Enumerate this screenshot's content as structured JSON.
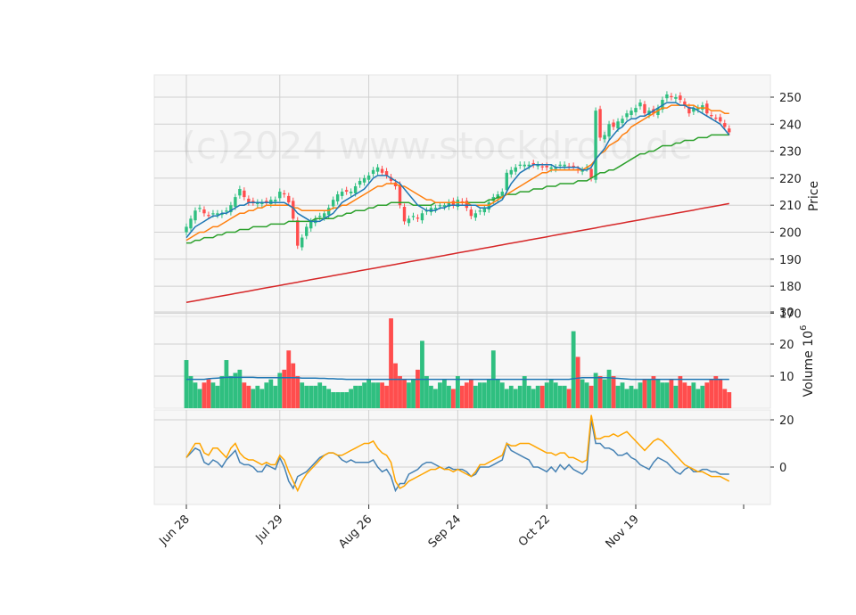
{
  "watermark": "(c)2024 www.stockdroid.de",
  "colors": {
    "panel_bg": "#f7f7f7",
    "grid": "#d0d0d0",
    "up": "#2fbf80",
    "down": "#ff4d4d",
    "ma_short": "#1f77b4",
    "ma_mid": "#ff7f0e",
    "ma_long": "#2ca02c",
    "ma_200": "#d62728",
    "volume_avg": "#1f77b4",
    "osc_fast": "#4682b4",
    "osc_slow": "#ffa500"
  },
  "chart_data": {
    "type": "candlestick",
    "x_tick_labels": [
      "Jun 28",
      "Jul 29",
      "Aug 26",
      "Sep 24",
      "Oct 22",
      "Nov 19"
    ],
    "x_tick_indices": [
      0,
      21,
      41,
      61,
      81,
      101
    ],
    "price_panel": {
      "ylabel": "Price",
      "ylim": [
        168,
        253.5
      ],
      "yticks": [
        170,
        180,
        190,
        200,
        210,
        220,
        230,
        240,
        250
      ],
      "close": [
        202,
        205,
        208,
        209,
        207,
        206,
        207,
        207,
        207,
        208,
        210,
        213,
        216,
        213,
        211,
        211,
        211,
        211,
        211,
        212,
        212,
        215,
        214,
        211,
        205,
        195,
        198,
        202,
        204,
        205,
        206,
        207,
        209,
        212,
        214,
        215,
        215,
        215,
        217,
        219,
        220,
        221,
        223,
        224,
        222,
        221,
        219,
        217,
        210,
        204,
        205,
        206,
        205,
        207,
        208,
        209,
        209,
        210,
        210,
        211,
        210,
        212,
        211,
        209,
        206,
        207,
        208,
        209,
        211,
        213,
        214,
        215,
        222,
        223,
        224,
        225,
        225,
        225,
        225,
        225,
        224,
        224,
        224,
        224,
        225,
        225,
        224,
        224,
        223,
        223,
        224,
        220,
        245,
        235,
        236,
        240,
        239,
        241,
        242,
        244,
        245,
        246,
        248,
        244,
        245,
        244,
        246,
        249,
        251,
        250,
        250,
        249,
        247,
        244,
        246,
        246,
        247,
        244,
        243,
        242,
        241,
        239,
        237
      ],
      "ma_short": [
        198,
        200,
        202,
        203,
        204,
        205,
        206,
        206,
        207,
        207,
        208,
        209,
        210,
        210,
        211,
        211,
        211,
        211,
        211,
        211,
        211,
        211,
        211,
        210,
        209,
        207,
        206,
        205,
        204,
        204,
        204,
        205,
        206,
        207,
        209,
        211,
        212,
        213,
        214,
        215,
        216,
        218,
        220,
        221,
        221,
        221,
        220,
        219,
        218,
        216,
        214,
        212,
        210,
        209,
        208,
        208,
        208,
        209,
        209,
        210,
        210,
        210,
        210,
        210,
        210,
        210,
        209,
        209,
        209,
        210,
        211,
        212,
        215,
        218,
        220,
        222,
        223,
        224,
        225,
        225,
        225,
        225,
        225,
        224,
        224,
        224,
        224,
        224,
        224,
        223,
        223,
        224,
        227,
        229,
        231,
        234,
        236,
        238,
        239,
        241,
        242,
        242,
        243,
        243,
        244,
        245,
        246,
        247,
        248,
        248,
        248,
        247,
        247,
        246,
        246,
        245,
        244,
        243,
        242,
        241,
        240,
        238,
        236
      ],
      "ma_mid": [
        197,
        198,
        199,
        200,
        200,
        201,
        202,
        202,
        203,
        204,
        205,
        206,
        207,
        207,
        208,
        208,
        209,
        209,
        210,
        210,
        210,
        210,
        210,
        210,
        209,
        209,
        208,
        208,
        208,
        208,
        208,
        208,
        208,
        209,
        209,
        210,
        210,
        211,
        212,
        213,
        214,
        215,
        216,
        217,
        217,
        218,
        218,
        218,
        217,
        217,
        216,
        215,
        214,
        213,
        212,
        212,
        211,
        211,
        211,
        211,
        211,
        211,
        211,
        211,
        210,
        210,
        210,
        210,
        210,
        211,
        212,
        213,
        214,
        215,
        216,
        217,
        218,
        219,
        220,
        221,
        222,
        222,
        223,
        223,
        223,
        223,
        223,
        223,
        223,
        223,
        224,
        225,
        227,
        229,
        230,
        232,
        233,
        234,
        236,
        237,
        239,
        240,
        241,
        242,
        243,
        244,
        245,
        246,
        246,
        247,
        247,
        247,
        247,
        247,
        247,
        246,
        246,
        246,
        245,
        245,
        245,
        244,
        244
      ],
      "ma_long": [
        196,
        196,
        197,
        197,
        198,
        198,
        198,
        199,
        199,
        200,
        200,
        200,
        201,
        201,
        201,
        202,
        202,
        202,
        202,
        203,
        203,
        203,
        203,
        204,
        204,
        204,
        204,
        204,
        204,
        205,
        205,
        205,
        205,
        205,
        206,
        206,
        207,
        207,
        208,
        208,
        208,
        209,
        209,
        210,
        210,
        210,
        211,
        211,
        211,
        211,
        211,
        210,
        210,
        210,
        210,
        210,
        211,
        211,
        211,
        211,
        211,
        211,
        211,
        211,
        211,
        211,
        211,
        211,
        212,
        212,
        213,
        213,
        214,
        214,
        214,
        215,
        215,
        215,
        216,
        216,
        216,
        217,
        217,
        217,
        218,
        218,
        218,
        218,
        219,
        219,
        219,
        220,
        221,
        222,
        222,
        223,
        223,
        224,
        225,
        226,
        227,
        228,
        229,
        229,
        230,
        230,
        231,
        232,
        232,
        232,
        233,
        233,
        234,
        234,
        234,
        235,
        235,
        235,
        236,
        236,
        236,
        236,
        236
      ],
      "ma_200": [
        174,
        174.3,
        174.6,
        174.9,
        175.2,
        175.5,
        175.8,
        176.1,
        176.4,
        176.7,
        177,
        177.3,
        177.6,
        177.9,
        178.2,
        178.5,
        178.8,
        179.1,
        179.4,
        179.7,
        180,
        180.3,
        180.6,
        180.9,
        181.2,
        181.5,
        181.8,
        182.1,
        182.4,
        182.7,
        183,
        183.3,
        183.6,
        183.9,
        184.2,
        184.5,
        184.8,
        185.1,
        185.4,
        185.7,
        186,
        186.3,
        186.6,
        186.9,
        187.2,
        187.5,
        187.8,
        188.1,
        188.4,
        188.7,
        189,
        189.3,
        189.6,
        189.9,
        190.2,
        190.5,
        190.8,
        191.1,
        191.4,
        191.7,
        192,
        192.3,
        192.6,
        192.9,
        193.2,
        193.5,
        193.8,
        194.1,
        194.4,
        194.7,
        195,
        195.3,
        195.6,
        195.9,
        196.2,
        196.5,
        196.8,
        197.1,
        197.4,
        197.7,
        198,
        198.3,
        198.6,
        198.9,
        199.2,
        199.5,
        199.8,
        200.1,
        200.4,
        200.7,
        201,
        201.3,
        201.6,
        201.9,
        202.2,
        202.5,
        202.8,
        203.1,
        203.4,
        203.7,
        204,
        204.3,
        204.6,
        204.9,
        205.2,
        205.5,
        205.8,
        206.1,
        206.4,
        206.7,
        207,
        207.3,
        207.6,
        207.9,
        208.2,
        208.5,
        208.8,
        209.1,
        209.4,
        209.7,
        210,
        210.3,
        210.6
      ]
    },
    "volume_panel": {
      "ylabel": "Volume  10^6",
      "ylim": [
        0,
        30
      ],
      "yticks": [
        10,
        20,
        30
      ],
      "volume": [
        15,
        10,
        8,
        6,
        8,
        9,
        8,
        7,
        10,
        15,
        10,
        11,
        12,
        8,
        7,
        6,
        7,
        6,
        8,
        9,
        7,
        11,
        12,
        18,
        14,
        10,
        8,
        7,
        7,
        7,
        8,
        7,
        6,
        5,
        5,
        5,
        5,
        6,
        7,
        7,
        8,
        9,
        8,
        8,
        8,
        7,
        28,
        14,
        10,
        9,
        8,
        9,
        12,
        21,
        10,
        7,
        6,
        8,
        9,
        7,
        6,
        10,
        7,
        8,
        9,
        7,
        8,
        8,
        9,
        18,
        9,
        8,
        6,
        7,
        6,
        7,
        10,
        7,
        6,
        7,
        7,
        8,
        9,
        8,
        7,
        7,
        6,
        24,
        16,
        9,
        8,
        7,
        11,
        10,
        9,
        12,
        10,
        7,
        8,
        6,
        7,
        6,
        8,
        9,
        9,
        10,
        9,
        8,
        8,
        9,
        7,
        10,
        8,
        7,
        8,
        6,
        7,
        8,
        9,
        10,
        9,
        6,
        5
      ],
      "avg": [
        9,
        9,
        9,
        9,
        9,
        9.2,
        9.3,
        9.4,
        9.5,
        9.6,
        9.6,
        9.6,
        9.6,
        9.6,
        9.6,
        9.6,
        9.5,
        9.5,
        9.5,
        9.5,
        9.5,
        9.5,
        9.5,
        9.5,
        9.5,
        9.5,
        9.4,
        9.4,
        9.4,
        9.4,
        9.3,
        9.3,
        9.2,
        9.2,
        9.1,
        9.1,
        9,
        9,
        9,
        9,
        9,
        9,
        9,
        9,
        9,
        9,
        9,
        9,
        9,
        9,
        9,
        9,
        9,
        9,
        9,
        9,
        9,
        9,
        9,
        9,
        9,
        9,
        9,
        9,
        9,
        9,
        9,
        9,
        9,
        9,
        9,
        9,
        9,
        9,
        9,
        9,
        9,
        9,
        9,
        9,
        9,
        9,
        9,
        9,
        9,
        9,
        9,
        9.2,
        9.4,
        9.5,
        9.5,
        9.5,
        9.5,
        9.5,
        9.5,
        9.5,
        9.4,
        9.3,
        9.2,
        9.1,
        9,
        9,
        9,
        9,
        9,
        9,
        9,
        9,
        9,
        9,
        9,
        9,
        9,
        9,
        9,
        9,
        9,
        9,
        9,
        9,
        9,
        9,
        9
      ]
    },
    "oscillator_panel": {
      "ylim": [
        -9,
        24
      ],
      "yticks": [
        0,
        20
      ],
      "fast": [
        4,
        6,
        8,
        7,
        2,
        1,
        3,
        2,
        0,
        3,
        5,
        7,
        2,
        1,
        1,
        0,
        -2,
        -2,
        1,
        0,
        -1,
        4,
        0,
        -6,
        -9,
        -4,
        -3,
        -2,
        0,
        2,
        4,
        5,
        6,
        6,
        5,
        3,
        2,
        3,
        2,
        2,
        2,
        2,
        3,
        0,
        -2,
        -1,
        -4,
        -10,
        -7,
        -7,
        -3,
        -2,
        -1,
        1,
        2,
        2,
        1,
        0,
        -1,
        0,
        -1,
        -1,
        -1,
        -2,
        -4,
        -3,
        0,
        0,
        0,
        1,
        2,
        3,
        10,
        7,
        6,
        5,
        4,
        3,
        0,
        0,
        -1,
        -2,
        0,
        -2,
        1,
        -1,
        1,
        -1,
        -2,
        -3,
        -1,
        20,
        10,
        10,
        8,
        8,
        7,
        5,
        5,
        6,
        4,
        3,
        1,
        0,
        -1,
        2,
        4,
        3,
        2,
        0,
        -2,
        -3,
        -1,
        0,
        -2,
        -2,
        -1,
        -1,
        -2,
        -2,
        -3,
        -3,
        -3
      ],
      "slow": [
        4,
        7,
        10,
        10,
        6,
        5,
        8,
        8,
        6,
        4,
        8,
        10,
        6,
        4,
        3,
        3,
        2,
        1,
        2,
        1,
        1,
        5,
        3,
        -2,
        -6,
        -10,
        -6,
        -3,
        -1,
        1,
        3,
        5,
        6,
        6,
        5,
        5,
        6,
        7,
        8,
        9,
        10,
        10,
        11,
        8,
        6,
        5,
        2,
        -6,
        -9,
        -8,
        -6,
        -5,
        -4,
        -3,
        -2,
        -1,
        -1,
        0,
        -1,
        -1,
        -2,
        -1,
        -2,
        -3,
        -4,
        -2,
        1,
        1,
        2,
        3,
        4,
        5,
        10,
        9,
        9,
        10,
        10,
        10,
        9,
        8,
        7,
        6,
        6,
        5,
        6,
        6,
        4,
        4,
        3,
        2,
        3,
        22,
        12,
        12,
        13,
        13,
        14,
        13,
        14,
        15,
        13,
        11,
        9,
        7,
        9,
        11,
        12,
        11,
        9,
        7,
        5,
        3,
        1,
        0,
        -1,
        -2,
        -2,
        -3,
        -4,
        -4,
        -4,
        -5,
        -6
      ]
    }
  }
}
